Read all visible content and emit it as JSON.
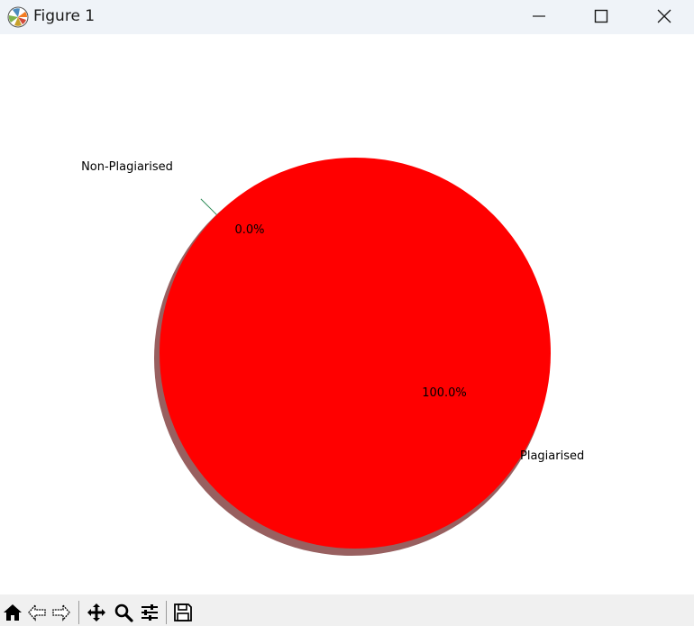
{
  "window": {
    "title": "Figure 1"
  },
  "icons": {
    "app": "matplotlib-icon",
    "minimize": "minimize-icon",
    "maximize": "maximize-icon",
    "close": "close-icon"
  },
  "toolbar": {
    "tools": [
      "home-icon",
      "back-icon",
      "forward-icon",
      "pan-icon",
      "zoom-icon",
      "configure-subplots-icon",
      "save-icon"
    ]
  },
  "chart_data": {
    "type": "pie",
    "title": "",
    "labels": [
      "Non-Plagiarised",
      "Plagiarised"
    ],
    "values": [
      0.0,
      100.0
    ],
    "percent_labels": [
      "0.0%",
      "100.0%"
    ],
    "colors": [
      "#2e8b57",
      "#ff0000"
    ],
    "shadow": true,
    "start_angle_deg": 135,
    "legend": "none"
  }
}
